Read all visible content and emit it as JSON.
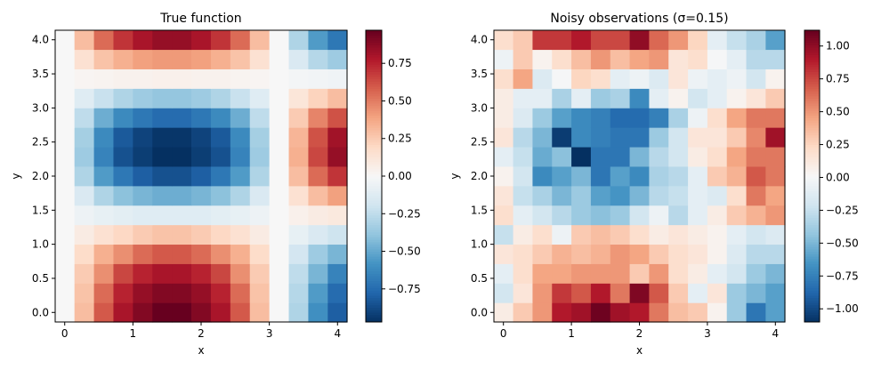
{
  "chart_data": [
    {
      "type": "heatmap",
      "title": "True function",
      "xlabel": "x",
      "ylabel": "y",
      "xlim": [
        -0.14,
        4.14
      ],
      "ylim": [
        -0.14,
        4.14
      ],
      "xticks": [
        0,
        1,
        2,
        3,
        4
      ],
      "yticks": [
        0.0,
        0.5,
        1.0,
        1.5,
        2.0,
        2.5,
        3.0,
        3.5,
        4.0
      ],
      "xtick_labels": [
        "0",
        "1",
        "2",
        "3",
        "4"
      ],
      "ytick_labels": [
        "0.0",
        "0.5",
        "1.0",
        "1.5",
        "2.0",
        "2.5",
        "3.0",
        "3.5",
        "4.0"
      ],
      "colormap": "RdBu_r",
      "vmin": -0.97,
      "vmax": 0.97,
      "colorbar_ticks": [
        -0.75,
        -0.5,
        -0.25,
        0.0,
        0.25,
        0.5,
        0.75
      ],
      "colorbar_tick_labels": [
        "−0.75",
        "−0.50",
        "−0.25",
        "0.00",
        "0.25",
        "0.50",
        "0.75"
      ],
      "grid_size": 15,
      "z_rows_bottom_to_top": [
        [
          0.0,
          0.3,
          0.6,
          0.8,
          0.9,
          0.97,
          0.97,
          0.9,
          0.8,
          0.6,
          0.3,
          0.0,
          -0.3,
          -0.6,
          -0.8
        ],
        [
          0.0,
          0.28,
          0.55,
          0.75,
          0.85,
          0.9,
          0.9,
          0.85,
          0.75,
          0.55,
          0.28,
          0.0,
          -0.28,
          -0.55,
          -0.75
        ],
        [
          0.0,
          0.25,
          0.45,
          0.65,
          0.75,
          0.8,
          0.8,
          0.75,
          0.65,
          0.45,
          0.25,
          0.0,
          -0.25,
          -0.45,
          -0.65
        ],
        [
          0.0,
          0.18,
          0.35,
          0.45,
          0.55,
          0.6,
          0.6,
          0.55,
          0.45,
          0.35,
          0.18,
          0.0,
          -0.18,
          -0.35,
          -0.45
        ],
        [
          0.0,
          0.08,
          0.15,
          0.2,
          0.25,
          0.28,
          0.28,
          0.25,
          0.2,
          0.15,
          0.08,
          0.0,
          -0.08,
          -0.15,
          -0.2
        ],
        [
          0.0,
          -0.05,
          -0.08,
          -0.1,
          -0.12,
          -0.12,
          -0.12,
          -0.12,
          -0.1,
          -0.08,
          -0.05,
          0.0,
          0.05,
          0.08,
          0.1
        ],
        [
          0.0,
          -0.15,
          -0.3,
          -0.4,
          -0.45,
          -0.48,
          -0.48,
          -0.45,
          -0.4,
          -0.3,
          -0.15,
          0.0,
          0.15,
          0.3,
          0.4
        ],
        [
          0.0,
          -0.3,
          -0.55,
          -0.7,
          -0.8,
          -0.85,
          -0.85,
          -0.8,
          -0.7,
          -0.55,
          -0.3,
          0.0,
          0.3,
          0.55,
          0.7
        ],
        [
          0.0,
          -0.35,
          -0.65,
          -0.85,
          -0.92,
          -0.97,
          -0.97,
          -0.92,
          -0.85,
          -0.65,
          -0.35,
          0.0,
          0.35,
          0.65,
          0.85
        ],
        [
          0.0,
          -0.33,
          -0.62,
          -0.82,
          -0.9,
          -0.95,
          -0.95,
          -0.9,
          -0.82,
          -0.62,
          -0.33,
          0.0,
          0.33,
          0.62,
          0.82
        ],
        [
          0.0,
          -0.25,
          -0.48,
          -0.62,
          -0.7,
          -0.75,
          -0.75,
          -0.7,
          -0.62,
          -0.48,
          -0.25,
          0.0,
          0.25,
          0.48,
          0.62
        ],
        [
          0.0,
          -0.12,
          -0.22,
          -0.3,
          -0.35,
          -0.38,
          -0.38,
          -0.35,
          -0.3,
          -0.22,
          -0.12,
          0.0,
          0.12,
          0.22,
          0.3
        ],
        [
          0.0,
          0.02,
          0.03,
          0.04,
          0.04,
          0.05,
          0.05,
          0.04,
          0.04,
          0.03,
          0.02,
          0.0,
          -0.02,
          -0.03,
          -0.04
        ],
        [
          0.0,
          0.15,
          0.28,
          0.35,
          0.4,
          0.42,
          0.42,
          0.4,
          0.35,
          0.28,
          0.15,
          0.0,
          -0.15,
          -0.28,
          -0.35
        ],
        [
          0.0,
          0.3,
          0.55,
          0.7,
          0.8,
          0.85,
          0.85,
          0.8,
          0.7,
          0.55,
          0.3,
          0.0,
          -0.3,
          -0.55,
          -0.7
        ]
      ]
    },
    {
      "type": "heatmap",
      "title": "Noisy observations (σ=0.15)",
      "xlabel": "x",
      "ylabel": "y",
      "xlim": [
        -0.14,
        4.14
      ],
      "ylim": [
        -0.14,
        4.14
      ],
      "xticks": [
        0,
        1,
        2,
        3,
        4
      ],
      "yticks": [
        0.0,
        0.5,
        1.0,
        1.5,
        2.0,
        2.5,
        3.0,
        3.5,
        4.0
      ],
      "xtick_labels": [
        "0",
        "1",
        "2",
        "3",
        "4"
      ],
      "ytick_labels": [
        "0.0",
        "0.5",
        "1.0",
        "1.5",
        "2.0",
        "2.5",
        "3.0",
        "3.5",
        "4.0"
      ],
      "colormap": "RdBu_r",
      "vmin": -1.1,
      "vmax": 1.12,
      "colorbar_ticks": [
        -1.0,
        -0.75,
        -0.5,
        -0.25,
        0.0,
        0.25,
        0.5,
        0.75,
        1.0
      ],
      "colorbar_tick_labels": [
        "−1.00",
        "−0.75",
        "−0.50",
        "−0.25",
        "0.00",
        "0.25",
        "0.50",
        "0.75",
        "1.00"
      ],
      "grid_size": 15,
      "z_rows_bottom_to_top": [
        [
          0.1,
          0.3,
          0.5,
          0.9,
          0.95,
          1.1,
          0.95,
          0.9,
          0.6,
          0.35,
          0.3,
          0.05,
          -0.4,
          -0.8,
          -0.6
        ],
        [
          -0.2,
          0.15,
          0.5,
          0.8,
          0.7,
          0.9,
          0.6,
          1.05,
          0.7,
          0.3,
          -0.1,
          0.15,
          -0.4,
          -0.5,
          -0.6
        ],
        [
          -0.1,
          0.2,
          0.45,
          0.45,
          0.5,
          0.5,
          0.5,
          0.3,
          0.5,
          0.2,
          0.1,
          -0.1,
          -0.2,
          -0.4,
          -0.5
        ],
        [
          0.15,
          0.2,
          0.3,
          0.4,
          0.35,
          0.4,
          0.5,
          0.45,
          0.3,
          0.2,
          0.15,
          0.05,
          -0.15,
          -0.3,
          -0.3
        ],
        [
          -0.25,
          0.1,
          0.2,
          -0.05,
          0.3,
          0.35,
          0.3,
          0.2,
          0.1,
          0.15,
          0.1,
          0.05,
          -0.1,
          -0.2,
          -0.15
        ],
        [
          0.2,
          -0.1,
          -0.2,
          -0.3,
          -0.4,
          -0.45,
          -0.4,
          -0.2,
          -0.05,
          -0.3,
          -0.1,
          0.1,
          0.3,
          0.4,
          0.5
        ],
        [
          0.15,
          -0.25,
          -0.35,
          -0.5,
          -0.4,
          -0.6,
          -0.65,
          -0.5,
          -0.3,
          -0.25,
          -0.1,
          -0.15,
          0.2,
          0.6,
          0.45
        ],
        [
          0.05,
          -0.2,
          -0.7,
          -0.6,
          -0.5,
          -0.8,
          -0.6,
          -0.7,
          -0.35,
          -0.3,
          -0.1,
          0.3,
          0.4,
          0.7,
          0.6
        ],
        [
          -0.1,
          -0.25,
          -0.55,
          -0.45,
          -1.1,
          -0.8,
          -0.8,
          -0.5,
          -0.3,
          -0.2,
          0.1,
          0.2,
          0.45,
          0.6,
          0.6
        ],
        [
          0.15,
          -0.3,
          -0.5,
          -1.05,
          -0.7,
          -0.75,
          -0.8,
          -0.8,
          -0.4,
          -0.2,
          0.15,
          0.15,
          0.3,
          0.55,
          0.95
        ],
        [
          0.1,
          -0.15,
          -0.4,
          -0.6,
          -0.7,
          -0.75,
          -0.85,
          -0.85,
          -0.75,
          -0.35,
          -0.05,
          0.2,
          0.45,
          0.6,
          0.6
        ],
        [
          0.1,
          -0.1,
          -0.1,
          -0.35,
          -0.1,
          -0.4,
          -0.35,
          -0.7,
          -0.1,
          0.05,
          -0.2,
          -0.1,
          0.05,
          0.15,
          0.3
        ],
        [
          0.2,
          0.45,
          -0.15,
          0.0,
          0.25,
          0.2,
          -0.1,
          -0.05,
          -0.15,
          0.15,
          -0.05,
          -0.1,
          -0.05,
          -0.2,
          0.05
        ],
        [
          -0.05,
          0.3,
          0.05,
          0.2,
          0.35,
          0.5,
          0.35,
          0.45,
          0.5,
          0.15,
          0.2,
          0.0,
          -0.1,
          -0.3,
          -0.3
        ],
        [
          0.2,
          0.3,
          0.8,
          0.8,
          0.9,
          0.75,
          0.75,
          1.0,
          0.65,
          0.5,
          0.25,
          -0.1,
          -0.25,
          -0.35,
          -0.6
        ]
      ]
    }
  ]
}
